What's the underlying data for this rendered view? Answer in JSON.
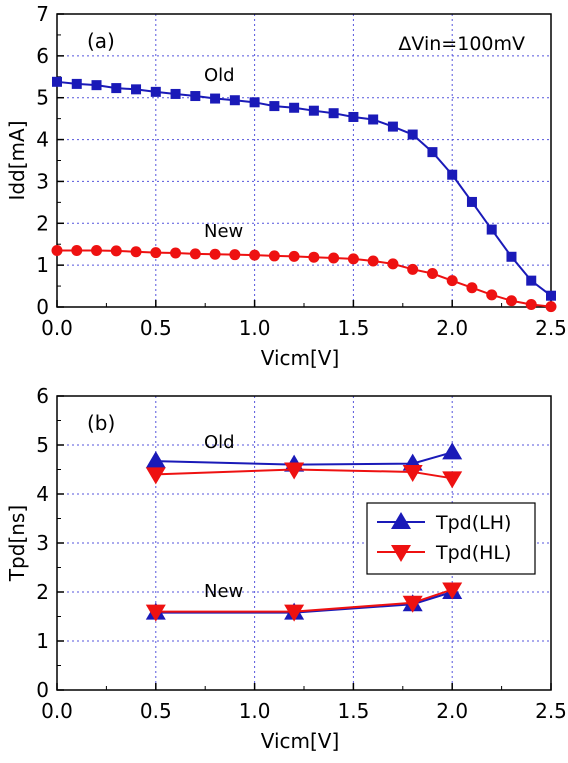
{
  "chart_data": [
    {
      "type": "line",
      "panel_label": "(a)",
      "annotation": "ΔVin=100mV",
      "xlabel": "Vicm[V]",
      "ylabel": "Idd[mA]",
      "xlim": [
        0,
        2.5
      ],
      "ylim": [
        0,
        7
      ],
      "xticks": [
        "0.0",
        "0.5",
        "1.0",
        "1.5",
        "2.0",
        "2.5"
      ],
      "yticks": [
        "0",
        "1",
        "2",
        "3",
        "4",
        "5",
        "6",
        "7"
      ],
      "grid": true,
      "series": [
        {
          "label": "Old",
          "color": "#1a1ab8",
          "marker": "square",
          "x": [
            0.0,
            0.1,
            0.2,
            0.3,
            0.4,
            0.5,
            0.6,
            0.7,
            0.8,
            0.9,
            1.0,
            1.1,
            1.2,
            1.3,
            1.4,
            1.5,
            1.6,
            1.7,
            1.8,
            1.9,
            2.0,
            2.1,
            2.2,
            2.3,
            2.4,
            2.5
          ],
          "y": [
            5.38,
            5.33,
            5.3,
            5.23,
            5.2,
            5.14,
            5.09,
            5.04,
            4.98,
            4.94,
            4.89,
            4.8,
            4.76,
            4.69,
            4.63,
            4.54,
            4.48,
            4.31,
            4.12,
            3.7,
            3.16,
            2.51,
            1.85,
            1.2,
            0.63,
            0.27
          ]
        },
        {
          "label": "New",
          "color": "#ee1111",
          "marker": "circle",
          "x": [
            0.0,
            0.1,
            0.2,
            0.3,
            0.4,
            0.5,
            0.6,
            0.7,
            0.8,
            0.9,
            1.0,
            1.1,
            1.2,
            1.3,
            1.4,
            1.5,
            1.6,
            1.7,
            1.8,
            1.9,
            2.0,
            2.1,
            2.2,
            2.3,
            2.4,
            2.5
          ],
          "y": [
            1.35,
            1.35,
            1.35,
            1.34,
            1.32,
            1.3,
            1.29,
            1.27,
            1.26,
            1.25,
            1.24,
            1.22,
            1.21,
            1.19,
            1.17,
            1.15,
            1.1,
            1.03,
            0.9,
            0.8,
            0.63,
            0.46,
            0.29,
            0.15,
            0.06,
            0.01
          ]
        }
      ]
    },
    {
      "type": "line",
      "panel_label": "(b)",
      "xlabel": "Vicm[V]",
      "ylabel": "Tpd[ns]",
      "xlim": [
        0,
        2.5
      ],
      "ylim": [
        0,
        6
      ],
      "xticks": [
        "0.0",
        "0.5",
        "1.0",
        "1.5",
        "2.0",
        "2.5"
      ],
      "yticks": [
        "0",
        "1",
        "2",
        "3",
        "4",
        "5",
        "6"
      ],
      "grid": true,
      "legend": {
        "placement": "center-right",
        "entries": [
          "Tpd(LH)",
          "Tpd(HL)"
        ]
      },
      "annotations": [
        "Old",
        "New"
      ],
      "series": [
        {
          "name": "Tpd(LH)",
          "group": "Old",
          "color": "#1a1ab8",
          "marker": "triangle-up",
          "x": [
            0.5,
            1.2,
            1.8,
            2.0
          ],
          "y": [
            4.67,
            4.6,
            4.62,
            4.85
          ]
        },
        {
          "name": "Tpd(HL)",
          "group": "Old",
          "color": "#ee1111",
          "marker": "triangle-down",
          "x": [
            0.5,
            1.2,
            1.8,
            2.0
          ],
          "y": [
            4.4,
            4.5,
            4.45,
            4.32
          ]
        },
        {
          "name": "Tpd(LH)",
          "group": "New",
          "color": "#1a1ab8",
          "marker": "triangle-up",
          "x": [
            0.5,
            1.2,
            1.8,
            2.0
          ],
          "y": [
            1.58,
            1.58,
            1.75,
            2.0
          ]
        },
        {
          "name": "Tpd(HL)",
          "group": "New",
          "color": "#ee1111",
          "marker": "triangle-down",
          "x": [
            0.5,
            1.2,
            1.8,
            2.0
          ],
          "y": [
            1.6,
            1.6,
            1.78,
            2.05
          ]
        }
      ]
    }
  ]
}
